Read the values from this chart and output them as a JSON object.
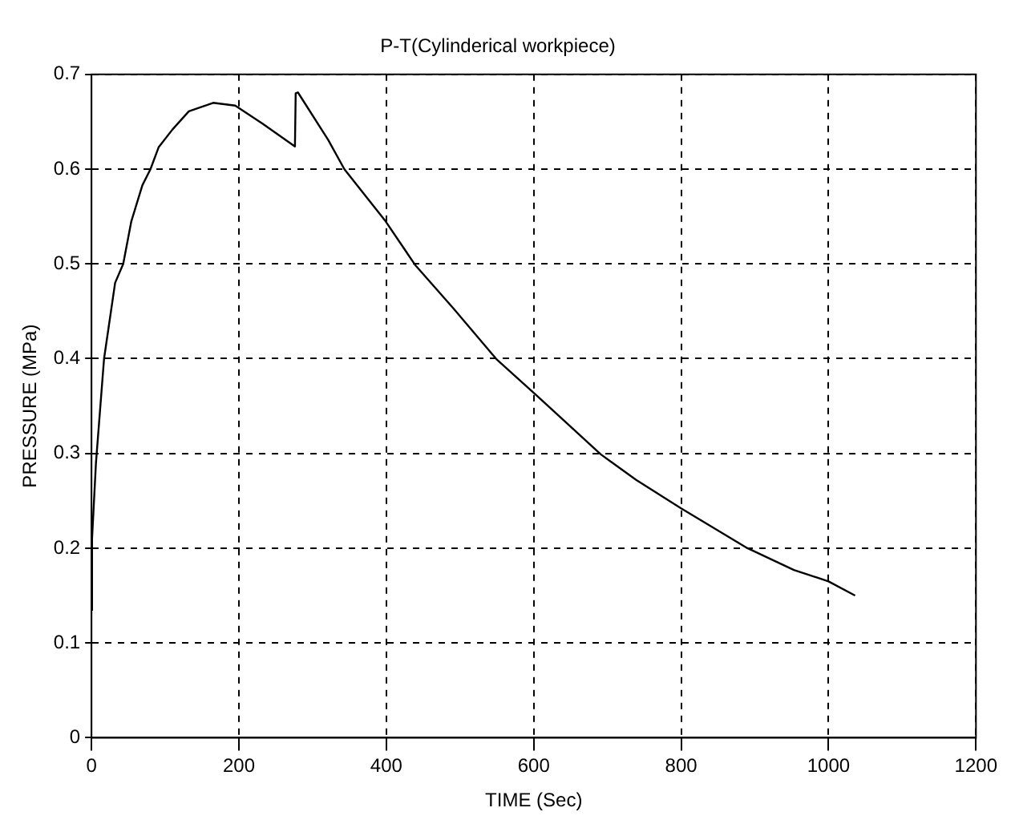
{
  "chart_data": {
    "type": "line",
    "title": "P-T(Cylinderical workpiece)",
    "xlabel": "TIME (Sec)",
    "ylabel": "PRESSURE (MPa)",
    "series": [
      {
        "color": "#000000",
        "x": [
          0.7,
          0.7,
          6,
          17,
          32,
          43,
          54,
          69,
          80,
          91,
          110,
          132,
          165,
          195,
          232,
          276,
          277,
          280,
          321,
          343,
          399,
          439,
          491,
          550,
          600,
          691,
          739,
          800,
          890,
          953,
          1000,
          1036
        ],
        "values": [
          0.134,
          0.21,
          0.29,
          0.4,
          0.48,
          0.5,
          0.545,
          0.583,
          0.6,
          0.623,
          0.642,
          0.661,
          0.67,
          0.667,
          0.648,
          0.624,
          0.68,
          0.681,
          0.631,
          0.6,
          0.545,
          0.499,
          0.453,
          0.399,
          0.364,
          0.299,
          0.272,
          0.242,
          0.2,
          0.177,
          0.165,
          0.15
        ]
      }
    ],
    "xlim": [
      0,
      1200
    ],
    "xticks": [
      0,
      200,
      400,
      600,
      800,
      1000,
      1200
    ],
    "ylim": [
      0,
      0.7
    ],
    "yticks": [
      0,
      0.1,
      0.2,
      0.3,
      0.4,
      0.5,
      0.6,
      0.7
    ],
    "grid": true,
    "legend": false,
    "marker": "none",
    "line_style": "solid"
  }
}
